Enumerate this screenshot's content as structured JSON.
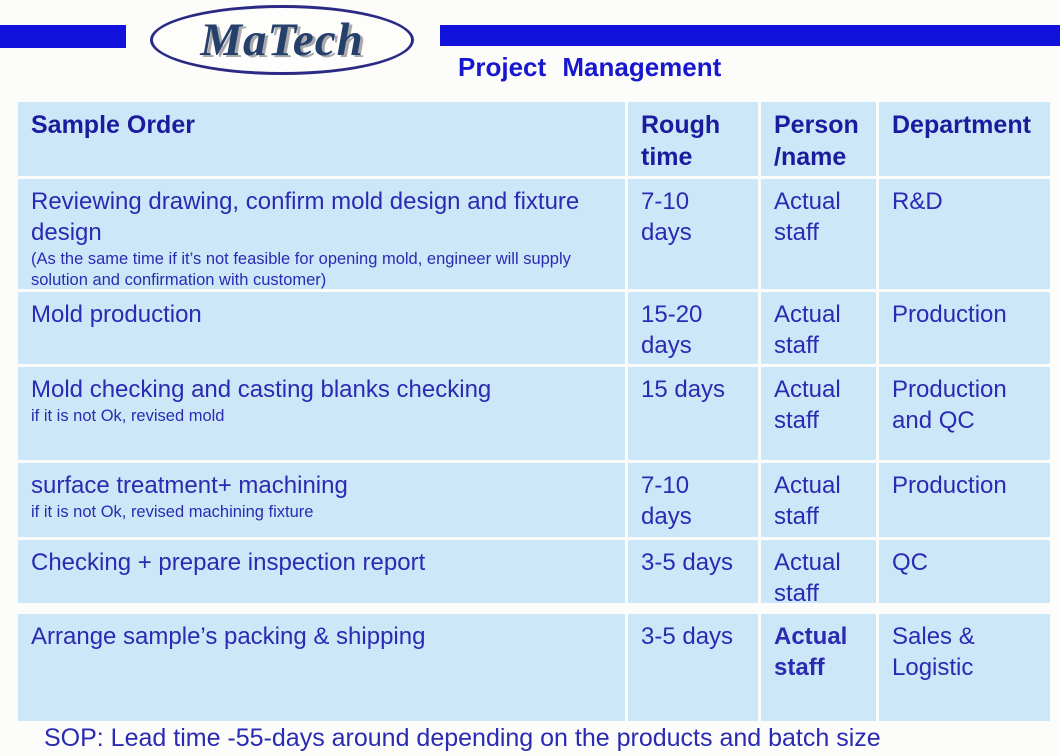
{
  "brand": {
    "logo_text": "MaTech"
  },
  "header": {
    "title": "Project Management"
  },
  "colors": {
    "accent_bar": "#1212dd",
    "title_text": "#1717cf",
    "cell_bg": "#cce8f8",
    "header_text": "#1b1b9e",
    "body_text": "#2a2ab2",
    "logo_navy": "#24406b",
    "ellipse_border": "#2a2a85"
  },
  "table": {
    "headers": {
      "task": "Sample Order",
      "time": "Rough time",
      "person": "Person /name",
      "department": "Department"
    },
    "rows": [
      {
        "task": "Reviewing drawing, confirm mold design and fixture design",
        "note": "(As the same time if it’s not feasible for opening mold, engineer will supply solution and confirmation with customer)",
        "time": "7-10 days",
        "person": "Actual staff",
        "department": "R&D"
      },
      {
        "task": "Mold production",
        "note": "",
        "time": "15-20 days",
        "person": "Actual staff",
        "department": "Production"
      },
      {
        "task": "Mold checking and casting blanks checking",
        "note": "if it is not Ok, revised mold",
        "time": "15 days",
        "person": "Actual staff",
        "department": "Production and QC"
      },
      {
        "task": "surface treatment+ machining",
        "note": "if it is not Ok, revised machining fixture",
        "time": "7-10 days",
        "person": "Actual staff",
        "department": "Production"
      },
      {
        "task": "Checking + prepare inspection report",
        "note": "",
        "time": "3-5 days",
        "person": "Actual staff",
        "department": "QC"
      },
      {
        "task": "Arrange sample’s packing & shipping",
        "note": "",
        "time": "3-5 days",
        "person": "Actual staff",
        "department": "Sales & Logistic"
      }
    ]
  },
  "footer": {
    "sop": "SOP: Lead time -55-days around depending on the products and batch size"
  }
}
